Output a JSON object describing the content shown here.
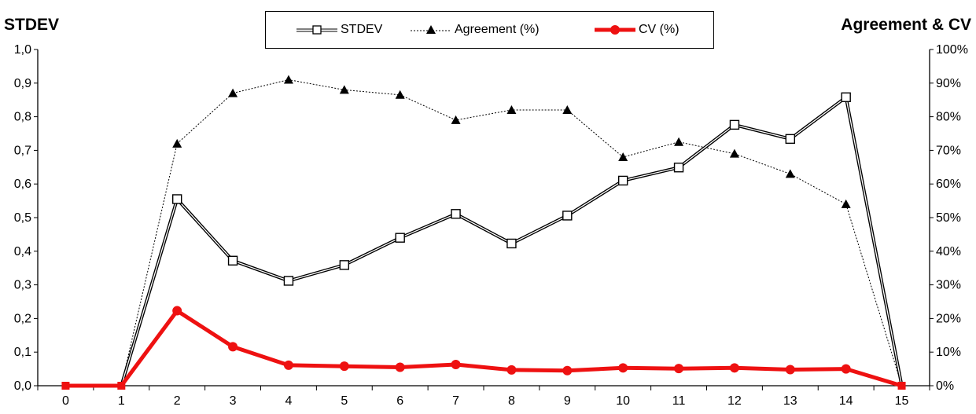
{
  "chart_data": {
    "type": "line",
    "left_axis_title": "STDEV",
    "right_axis_title": "Agreement & CV",
    "x": [
      0,
      1,
      2,
      3,
      4,
      5,
      6,
      7,
      8,
      9,
      10,
      11,
      12,
      13,
      14,
      15
    ],
    "x_tick_labels": [
      "0",
      "1",
      "2",
      "3",
      "4",
      "5",
      "6",
      "7",
      "8",
      "9",
      "10",
      "11",
      "12",
      "13",
      "14",
      "15"
    ],
    "y_left_ticks": [
      "0,0",
      "0,1",
      "0,2",
      "0,3",
      "0,4",
      "0,5",
      "0,6",
      "0,7",
      "0,8",
      "0,9",
      "1,0"
    ],
    "y_right_ticks": [
      "0%",
      "10%",
      "20%",
      "30%",
      "40%",
      "50%",
      "60%",
      "70%",
      "80%",
      "90%",
      "100%"
    ],
    "ylim_left": [
      0,
      1
    ],
    "ylim_right": [
      0,
      100
    ],
    "grid": false,
    "legend_position": "top-center",
    "series": [
      {
        "name": "STDEV",
        "axis": "left",
        "marker": "open-square",
        "line": "double-solid",
        "color": "#000000",
        "values": [
          null,
          0,
          0.555,
          0.372,
          0.312,
          0.359,
          0.44,
          0.511,
          0.423,
          0.506,
          0.61,
          0.649,
          0.776,
          0.734,
          0.858,
          0
        ]
      },
      {
        "name": "Agreement (%)",
        "axis": "right",
        "marker": "filled-triangle",
        "line": "dotted",
        "color": "#000000",
        "values": [
          null,
          0,
          72,
          87,
          91,
          88,
          86.5,
          79,
          82,
          82,
          68,
          72.5,
          69,
          63,
          54,
          0
        ]
      },
      {
        "name": "CV (%)",
        "axis": "right",
        "marker": "filled-circle",
        "line": "solid-thick",
        "color": "#ee1111",
        "values": [
          0,
          0,
          22.3,
          11.6,
          6.1,
          5.8,
          5.5,
          6.3,
          4.7,
          4.5,
          5.3,
          5.1,
          5.3,
          4.8,
          5.0,
          0
        ]
      }
    ]
  }
}
